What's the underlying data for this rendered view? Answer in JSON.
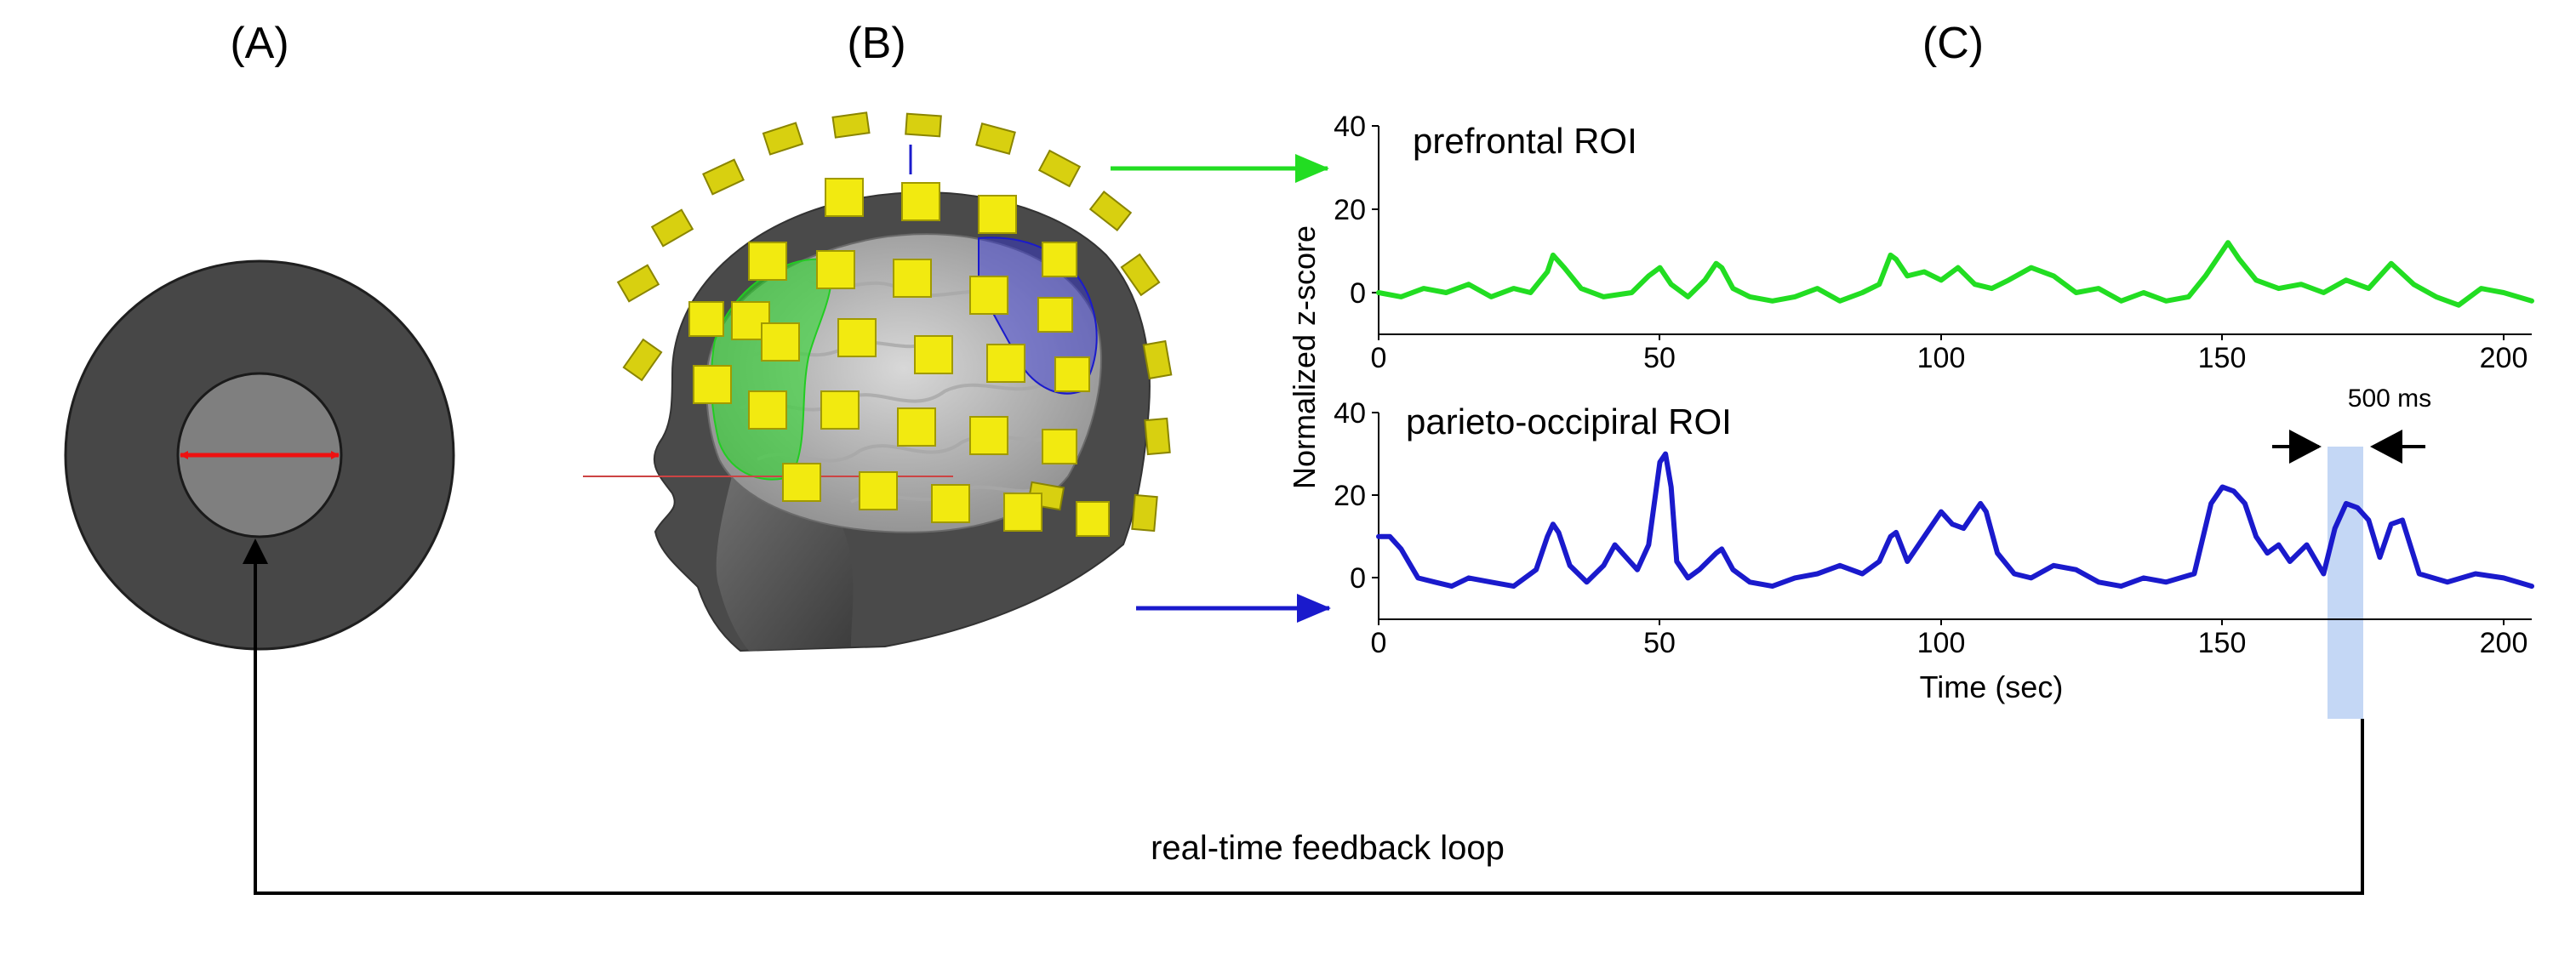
{
  "panels": {
    "a": {
      "label": "(A)"
    },
    "b": {
      "label": "(B)"
    },
    "c": {
      "label": "(C)"
    }
  },
  "feedback_label": "real-time feedback loop",
  "window_label": "500 ms",
  "colors": {
    "prefrontal": "#22dd22",
    "parieto_occipital": "#1a1acc",
    "stimulus_ring": "#474747",
    "stimulus_center": "#7f7f7f",
    "size_arrow": "#ee1111",
    "sensor": "#f2ea10",
    "highlight": "#c4d7f5"
  },
  "chart_data": [
    {
      "type": "line",
      "title": "prefrontal ROI",
      "xlabel": "",
      "ylabel": "Normalized z-score",
      "xlim": [
        0,
        205
      ],
      "ylim": [
        -10,
        40
      ],
      "xticks": [
        "0",
        "50",
        "100",
        "150",
        "200"
      ],
      "yticks": [
        "0",
        "20",
        "40"
      ],
      "series": [
        {
          "x": [
            0,
            4,
            8,
            12,
            16,
            20,
            24,
            27,
            30,
            31,
            33,
            36,
            40,
            45,
            48,
            50,
            52,
            55,
            58,
            60,
            61,
            63,
            66,
            70,
            74,
            78,
            82,
            86,
            89,
            91,
            92,
            94,
            97,
            100,
            103,
            106,
            109,
            112,
            116,
            120,
            124,
            128,
            132,
            136,
            140,
            144,
            147,
            150,
            151,
            153,
            156,
            160,
            164,
            168,
            172,
            176,
            180,
            184,
            188,
            192,
            196,
            200,
            205
          ],
          "y": [
            0,
            -1,
            1,
            0,
            2,
            -1,
            1,
            0,
            5,
            9,
            6,
            1,
            -1,
            0,
            4,
            6,
            2,
            -1,
            3,
            7,
            6,
            1,
            -1,
            -2,
            -1,
            1,
            -2,
            0,
            2,
            9,
            8,
            4,
            5,
            3,
            6,
            2,
            1,
            3,
            6,
            4,
            0,
            1,
            -2,
            0,
            -2,
            -1,
            4,
            10,
            12,
            8,
            3,
            1,
            2,
            0,
            3,
            1,
            7,
            2,
            -1,
            -3,
            1,
            0,
            -2
          ]
        }
      ]
    },
    {
      "type": "line",
      "title": "parieto-occipiral ROI",
      "xlabel": "Time (sec)",
      "ylabel": "Normalized z-score",
      "xlim": [
        0,
        205
      ],
      "ylim": [
        -10,
        40
      ],
      "xticks": [
        "0",
        "50",
        "100",
        "150",
        "200"
      ],
      "yticks": [
        "0",
        "20",
        "40"
      ],
      "series": [
        {
          "x": [
            0,
            2,
            4,
            7,
            10,
            13,
            16,
            20,
            24,
            28,
            30,
            31,
            32,
            34,
            37,
            40,
            42,
            44,
            46,
            48,
            50,
            51,
            52,
            53,
            55,
            57,
            60,
            61,
            63,
            66,
            70,
            74,
            78,
            82,
            86,
            89,
            91,
            92,
            94,
            97,
            100,
            102,
            104,
            106,
            107,
            108,
            110,
            113,
            116,
            120,
            124,
            128,
            132,
            136,
            140,
            145,
            148,
            150,
            152,
            154,
            156,
            158,
            160,
            162,
            165,
            168,
            170,
            172,
            174,
            176,
            178,
            180,
            182,
            185,
            190,
            195,
            200,
            205
          ],
          "y": [
            10,
            10,
            7,
            0,
            -1,
            -2,
            0,
            -1,
            -2,
            2,
            10,
            13,
            11,
            3,
            -1,
            3,
            8,
            5,
            2,
            8,
            28,
            30,
            22,
            4,
            0,
            2,
            6,
            7,
            2,
            -1,
            -2,
            0,
            1,
            3,
            1,
            4,
            10,
            11,
            4,
            10,
            16,
            13,
            12,
            16,
            18,
            16,
            6,
            1,
            0,
            3,
            2,
            -1,
            -2,
            0,
            -1,
            1,
            18,
            22,
            21,
            18,
            10,
            6,
            8,
            4,
            8,
            1,
            12,
            18,
            17,
            14,
            5,
            13,
            14,
            1,
            -1,
            1,
            0,
            -2
          ]
        }
      ]
    }
  ]
}
